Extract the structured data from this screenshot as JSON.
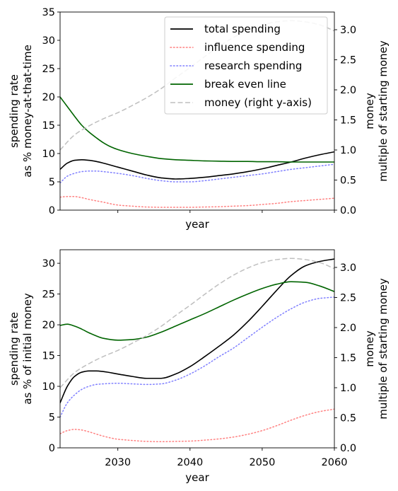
{
  "chart_data": [
    {
      "type": "line",
      "title": "",
      "xlabel": "year",
      "ylabel": "spending rate\nas % money-at-that-time",
      "y2label": "money\nmultiple of starting money",
      "xlim": [
        2022,
        2060
      ],
      "ylim": [
        0,
        35
      ],
      "y2lim": [
        0,
        3.294
      ],
      "show_x_tick_labels": false,
      "x_ticks": [
        2030,
        2040,
        2050,
        2060
      ],
      "y_ticks": [
        0,
        5,
        10,
        15,
        20,
        25,
        30,
        35
      ],
      "y2_ticks": [
        0.0,
        0.5,
        1.0,
        1.5,
        2.0,
        2.5,
        3.0
      ],
      "grid": false,
      "legend": {
        "placement": "top-right",
        "entries": [
          "total spending",
          "influence spending",
          "research spending",
          "break even line",
          "money (right y-axis)"
        ]
      },
      "series": [
        {
          "name": "total spending",
          "axis": "left",
          "color": "#000000",
          "style": "solid",
          "x": [
            2022,
            2023,
            2024,
            2025,
            2026,
            2027,
            2028,
            2030,
            2032,
            2034,
            2036,
            2038,
            2040,
            2042,
            2044,
            2046,
            2048,
            2050,
            2052,
            2054,
            2056,
            2058,
            2060
          ],
          "y": [
            7.2,
            8.3,
            8.8,
            8.9,
            8.8,
            8.6,
            8.3,
            7.6,
            6.9,
            6.2,
            5.7,
            5.5,
            5.6,
            5.8,
            6.1,
            6.4,
            6.8,
            7.3,
            7.9,
            8.5,
            9.2,
            9.8,
            10.3
          ]
        },
        {
          "name": "influence spending",
          "axis": "left",
          "color": "#ff7f7f",
          "style": "dotted",
          "x": [
            2022,
            2023,
            2024,
            2025,
            2026,
            2028,
            2030,
            2032,
            2034,
            2036,
            2038,
            2040,
            2042,
            2044,
            2046,
            2048,
            2050,
            2052,
            2054,
            2056,
            2058,
            2060
          ],
          "y": [
            2.3,
            2.4,
            2.4,
            2.2,
            1.9,
            1.4,
            0.9,
            0.7,
            0.55,
            0.5,
            0.5,
            0.5,
            0.55,
            0.6,
            0.7,
            0.8,
            1.0,
            1.2,
            1.5,
            1.7,
            1.9,
            2.1
          ]
        },
        {
          "name": "research spending",
          "axis": "left",
          "color": "#7f7fff",
          "style": "dotted",
          "x": [
            2022,
            2023,
            2024,
            2025,
            2026,
            2027,
            2028,
            2030,
            2032,
            2034,
            2036,
            2038,
            2040,
            2042,
            2044,
            2046,
            2048,
            2050,
            2052,
            2054,
            2056,
            2058,
            2060
          ],
          "y": [
            4.8,
            6.0,
            6.5,
            6.8,
            6.9,
            6.9,
            6.8,
            6.5,
            6.1,
            5.6,
            5.2,
            5.0,
            5.0,
            5.2,
            5.5,
            5.8,
            6.1,
            6.4,
            6.8,
            7.2,
            7.5,
            7.8,
            8.1
          ]
        },
        {
          "name": "break even line",
          "axis": "left",
          "color": "#006400",
          "style": "solid",
          "x": [
            2022,
            2023,
            2024,
            2025,
            2026,
            2027,
            2028,
            2029,
            2030,
            2032,
            2034,
            2036,
            2038,
            2040,
            2042,
            2044,
            2046,
            2048,
            2050,
            2052,
            2054,
            2056,
            2058,
            2060
          ],
          "y": [
            20.0,
            18.3,
            16.6,
            15.0,
            13.8,
            12.8,
            11.9,
            11.2,
            10.7,
            10.0,
            9.5,
            9.1,
            8.9,
            8.8,
            8.7,
            8.65,
            8.6,
            8.6,
            8.55,
            8.55,
            8.5,
            8.5,
            8.5,
            8.5
          ]
        },
        {
          "name": "money (right y-axis)",
          "axis": "right",
          "color": "#bfbfbf",
          "style": "dashed",
          "x": [
            2022,
            2024,
            2026,
            2028,
            2030,
            2032,
            2034,
            2036,
            2038,
            2040,
            2042,
            2044,
            2046,
            2048,
            2050,
            2052,
            2054,
            2056,
            2058,
            2060
          ],
          "y": [
            1.0,
            1.25,
            1.4,
            1.52,
            1.62,
            1.74,
            1.87,
            2.02,
            2.2,
            2.37,
            2.55,
            2.72,
            2.87,
            2.99,
            3.08,
            3.13,
            3.15,
            3.13,
            3.08,
            2.98
          ]
        }
      ]
    },
    {
      "type": "line",
      "title": "",
      "xlabel": "year",
      "ylabel": "spending rate\nas % of initial money",
      "y2label": "money\nmultiple of starting money",
      "xlim": [
        2022,
        2060
      ],
      "ylim": [
        0,
        32.2
      ],
      "y2lim": [
        0,
        3.294
      ],
      "show_x_tick_labels": true,
      "x_ticks": [
        2030,
        2040,
        2050,
        2060
      ],
      "y_ticks": [
        0,
        5,
        10,
        15,
        20,
        25,
        30
      ],
      "y2_ticks": [
        0.0,
        0.5,
        1.0,
        1.5,
        2.0,
        2.5,
        3.0
      ],
      "grid": false,
      "series": [
        {
          "name": "total spending",
          "axis": "left",
          "color": "#000000",
          "style": "solid",
          "x": [
            2022,
            2023,
            2024,
            2025,
            2026,
            2027,
            2028,
            2030,
            2032,
            2034,
            2036,
            2038,
            2040,
            2042,
            2044,
            2046,
            2048,
            2050,
            2052,
            2054,
            2056,
            2058,
            2060
          ],
          "y": [
            7.3,
            10.0,
            11.6,
            12.3,
            12.5,
            12.5,
            12.4,
            12.0,
            11.6,
            11.3,
            11.3,
            12.0,
            13.2,
            14.8,
            16.5,
            18.3,
            20.5,
            23.0,
            25.6,
            28.0,
            29.6,
            30.3,
            30.7
          ]
        },
        {
          "name": "influence spending",
          "axis": "left",
          "color": "#ff7f7f",
          "style": "dotted",
          "x": [
            2022,
            2023,
            2024,
            2025,
            2026,
            2028,
            2030,
            2032,
            2034,
            2036,
            2038,
            2040,
            2042,
            2044,
            2046,
            2048,
            2050,
            2052,
            2054,
            2056,
            2058,
            2060
          ],
          "y": [
            2.3,
            2.8,
            3.0,
            2.9,
            2.6,
            1.9,
            1.4,
            1.2,
            1.05,
            1.0,
            1.05,
            1.1,
            1.25,
            1.45,
            1.75,
            2.2,
            2.8,
            3.6,
            4.5,
            5.3,
            5.9,
            6.3
          ]
        },
        {
          "name": "research spending",
          "axis": "left",
          "color": "#7f7fff",
          "style": "dotted",
          "x": [
            2022,
            2023,
            2024,
            2025,
            2026,
            2027,
            2028,
            2030,
            2032,
            2034,
            2036,
            2038,
            2040,
            2042,
            2044,
            2046,
            2048,
            2050,
            2052,
            2054,
            2056,
            2058,
            2060
          ],
          "y": [
            5.0,
            7.3,
            8.6,
            9.5,
            10.0,
            10.3,
            10.4,
            10.5,
            10.4,
            10.3,
            10.4,
            11.0,
            12.0,
            13.3,
            14.8,
            16.2,
            17.9,
            19.6,
            21.2,
            22.6,
            23.7,
            24.3,
            24.5
          ]
        },
        {
          "name": "break even line",
          "axis": "left",
          "color": "#006400",
          "style": "solid",
          "x": [
            2022,
            2023,
            2024,
            2025,
            2026,
            2027,
            2028,
            2030,
            2032,
            2034,
            2036,
            2038,
            2040,
            2042,
            2044,
            2046,
            2048,
            2050,
            2052,
            2054,
            2056,
            2058,
            2060
          ],
          "y": [
            19.9,
            20.1,
            19.8,
            19.3,
            18.7,
            18.2,
            17.8,
            17.5,
            17.6,
            18.0,
            18.8,
            19.8,
            20.8,
            21.8,
            22.9,
            24.0,
            25.0,
            25.9,
            26.6,
            27.0,
            26.9,
            26.3,
            25.4
          ]
        },
        {
          "name": "money (right y-axis)",
          "axis": "right",
          "color": "#bfbfbf",
          "style": "dashed",
          "x": [
            2022,
            2024,
            2026,
            2028,
            2030,
            2032,
            2034,
            2036,
            2038,
            2040,
            2042,
            2044,
            2046,
            2048,
            2050,
            2052,
            2054,
            2056,
            2058,
            2060
          ],
          "y": [
            1.0,
            1.25,
            1.4,
            1.52,
            1.62,
            1.74,
            1.87,
            2.02,
            2.2,
            2.37,
            2.55,
            2.72,
            2.87,
            2.99,
            3.08,
            3.13,
            3.15,
            3.13,
            3.08,
            2.98
          ]
        }
      ]
    }
  ]
}
